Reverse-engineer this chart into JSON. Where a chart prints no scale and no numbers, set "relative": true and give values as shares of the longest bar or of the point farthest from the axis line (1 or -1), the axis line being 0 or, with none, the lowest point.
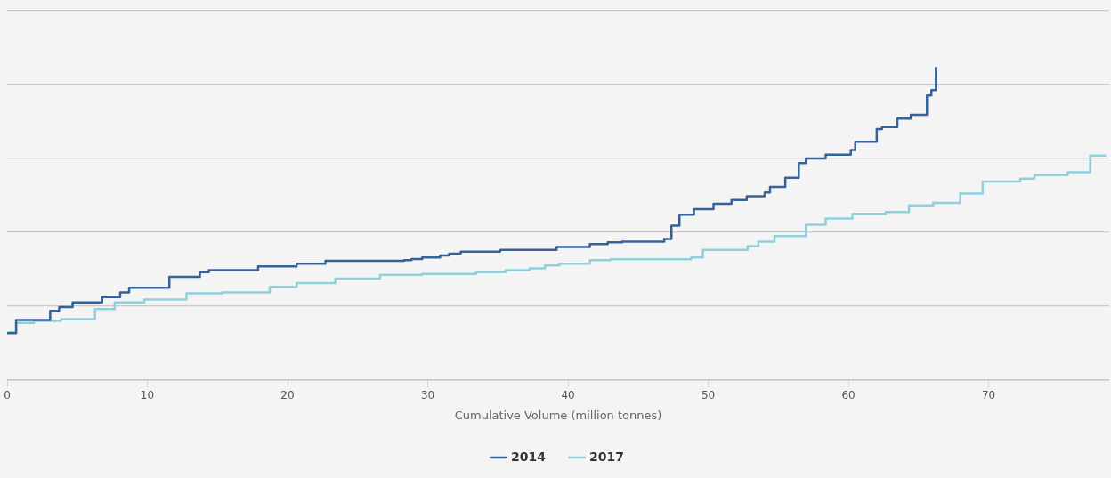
{
  "chart_data": {
    "type": "step",
    "relative": true,
    "xlabel": "Cumulative Volume (million tonnes)",
    "xlim": [
      0,
      78.6
    ],
    "xticks": [
      0,
      10,
      20,
      30,
      40,
      50,
      60,
      70
    ],
    "grid": "y",
    "legend": "bottom",
    "tick_labels": "x",
    "series": [
      {
        "name": "2014",
        "color": "#36629b",
        "x": [
          0,
          0.64,
          3.07,
          3.71,
          4.67,
          6.78,
          8.06,
          8.7,
          11.57,
          13.75,
          14.39,
          17.9,
          20.65,
          22.7,
          28.32,
          28.84,
          29.6,
          30.88,
          31.52,
          32.35,
          35.17,
          39.19,
          41.56,
          42.84,
          43.86,
          46.87,
          47.38,
          47.95,
          48.98,
          50.38,
          51.66,
          52.75,
          54.03,
          54.41,
          55.5,
          56.46,
          56.97,
          58.38,
          60.17,
          60.49,
          62.02,
          62.4,
          63.49,
          64.45,
          65.6,
          65.92,
          66.24
        ],
        "values": [
          0.15,
          0.192,
          0.221,
          0.233,
          0.248,
          0.265,
          0.28,
          0.295,
          0.33,
          0.345,
          0.351,
          0.363,
          0.372,
          0.381,
          0.383,
          0.387,
          0.392,
          0.398,
          0.404,
          0.41,
          0.416,
          0.425,
          0.434,
          0.44,
          0.442,
          0.451,
          0.493,
          0.528,
          0.546,
          0.563,
          0.575,
          0.587,
          0.599,
          0.617,
          0.646,
          0.693,
          0.708,
          0.72,
          0.735,
          0.761,
          0.802,
          0.808,
          0.835,
          0.847,
          0.909,
          0.926,
          1
        ]
      },
      {
        "name": "2017",
        "color": "#8fd0de",
        "x": [
          0.06,
          0.64,
          1.92,
          3.84,
          6.27,
          7.67,
          9.78,
          12.79,
          15.35,
          18.73,
          20.65,
          23.4,
          26.6,
          29.6,
          33.44,
          35.55,
          37.28,
          38.36,
          39.39,
          41.56,
          43.03,
          48.79,
          49.62,
          52.81,
          53.58,
          54.73,
          56.97,
          58.38,
          60.29,
          62.66,
          64.32,
          66.05,
          67.97,
          69.57,
          72.25,
          73.27,
          75.64,
          77.24,
          78.39
        ],
        "values": [
          0.153,
          0.183,
          0.189,
          0.195,
          0.227,
          0.248,
          0.257,
          0.277,
          0.28,
          0.298,
          0.31,
          0.324,
          0.336,
          0.339,
          0.345,
          0.351,
          0.357,
          0.366,
          0.372,
          0.383,
          0.386,
          0.392,
          0.416,
          0.428,
          0.442,
          0.46,
          0.496,
          0.516,
          0.531,
          0.537,
          0.558,
          0.566,
          0.596,
          0.634,
          0.643,
          0.655,
          0.664,
          0.717,
          0.717
        ]
      }
    ]
  }
}
